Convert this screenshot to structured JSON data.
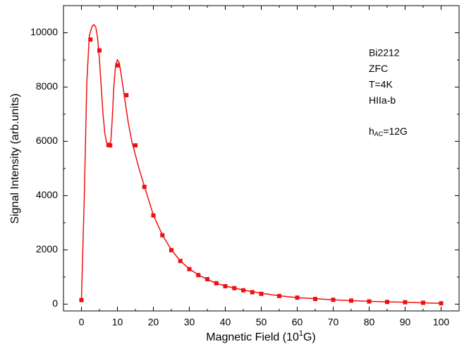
{
  "chart_data": {
    "type": "scatter",
    "xlabel": {
      "text": "Magnetic Field (10",
      "sup": "1",
      "rest": "G)"
    },
    "ylabel": "Signal Intensity (arb.units)",
    "annotations": [
      "Bi2212",
      "ZFC",
      "T=4K",
      "HIIa-b"
    ],
    "annotation_sub": {
      "text": "h",
      "sub": "AC",
      "rest": "=12G"
    },
    "xlim": [
      -5,
      105
    ],
    "ylim": [
      -250,
      11000
    ],
    "xticks": [
      0,
      10,
      20,
      30,
      40,
      50,
      60,
      70,
      80,
      90,
      100
    ],
    "yticks": [
      0,
      2000,
      4000,
      6000,
      8000,
      10000
    ],
    "series": [
      {
        "style": "markers",
        "color": "#ee1111",
        "x": [
          0,
          2.5,
          5,
          7.5,
          8,
          10,
          12.5,
          15,
          17.5,
          20,
          22.5,
          25,
          27.5,
          30,
          32.5,
          35,
          37.5,
          40,
          42.5,
          45,
          47.5,
          50,
          55,
          60,
          65,
          70,
          75,
          80,
          85,
          90,
          95,
          100
        ],
        "values": [
          150,
          9750,
          9350,
          5870,
          5850,
          8800,
          7700,
          5850,
          4320,
          3270,
          2540,
          1990,
          1590,
          1290,
          1070,
          920,
          770,
          660,
          590,
          510,
          440,
          380,
          300,
          240,
          190,
          160,
          130,
          100,
          80,
          70,
          50,
          30
        ]
      },
      {
        "style": "line",
        "color": "#ee1111",
        "x": [
          0,
          0.8,
          1.5,
          2.2,
          3,
          3.5,
          4,
          4.5,
          5,
          5.5,
          6,
          6.5,
          7,
          7.5,
          7.8,
          8.2,
          8.6,
          9,
          9.5,
          10,
          10.5,
          11,
          12,
          13,
          14,
          15,
          16,
          17.5,
          20,
          22.5,
          25,
          27.5,
          30,
          32.5,
          35,
          37.5,
          40,
          45,
          50,
          55,
          60,
          65,
          70,
          75,
          80,
          85,
          90,
          95,
          100
        ],
        "values": [
          150,
          4000,
          8200,
          9900,
          10250,
          10300,
          10200,
          9800,
          9000,
          8000,
          7000,
          6300,
          5950,
          5820,
          5800,
          6050,
          6900,
          8000,
          8800,
          9000,
          8900,
          8500,
          7600,
          6700,
          6000,
          5500,
          5000,
          4350,
          3280,
          2550,
          2000,
          1590,
          1300,
          1080,
          910,
          770,
          670,
          520,
          400,
          310,
          240,
          200,
          160,
          130,
          105,
          85,
          70,
          50,
          30
        ]
      }
    ]
  }
}
